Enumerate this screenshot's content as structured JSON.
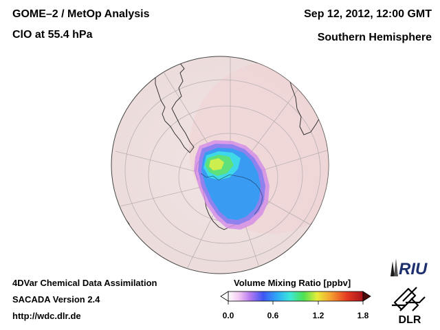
{
  "header": {
    "title_line1": "GOME–2 / MetOp Analysis",
    "title_line2": "ClO at 55.4 hPa",
    "date": "Sep 12, 2012, 12:00 GMT",
    "region": "Southern Hemisphere"
  },
  "footer": {
    "line1": "4DVar Chemical Data Assimilation",
    "line2": "SACADA Version 2.4",
    "line3": "http://wdc.dlr.de"
  },
  "colorbar": {
    "title": "Volume Mixing Ratio [ppbv]",
    "ticks": [
      "0.0",
      "0.6",
      "1.2",
      "1.8"
    ],
    "min": 0.0,
    "max": 1.8
  },
  "logos": {
    "riu": "RIU",
    "dlr": "DLR"
  },
  "colors": {
    "ocean_fill": "#f1e6e6",
    "background_tint": "#f5dcdc",
    "coast": "#222222"
  }
}
